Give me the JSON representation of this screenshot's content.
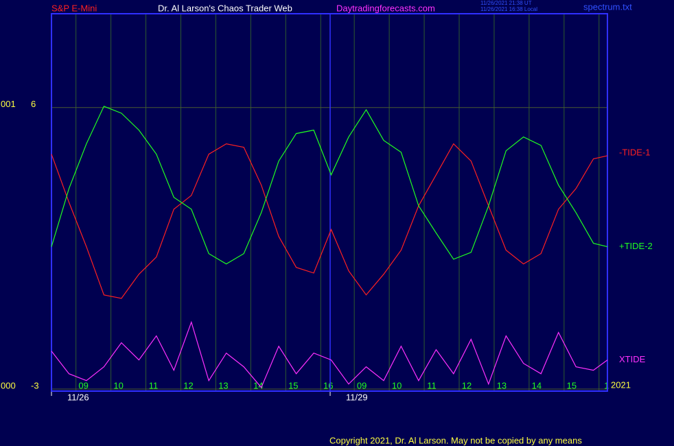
{
  "chart_data": {
    "type": "line",
    "header": {
      "instrument": "S&P E-Mini",
      "title": "Dr. Al Larson's Chaos Trader Web",
      "site": "Daytradingforecasts.com",
      "time_ut": "11/26/2021 21:38 UT",
      "time_local": "11/26/2021 16:38 Local",
      "file": "spectrum.txt"
    },
    "footer": "Copyright 2021, Dr. Al Larson. May not be copied by any means",
    "year_label": "2021",
    "x": [
      0,
      0.5,
      1,
      1.5,
      2,
      2.5,
      3,
      3.5,
      4,
      4.5,
      5,
      5.5,
      6,
      6.5,
      7,
      7.5,
      8,
      8.5,
      9,
      9.5,
      10,
      10.5,
      11,
      11.5,
      12,
      12.5,
      13,
      13.5,
      14,
      14.5,
      15,
      15.5,
      15.9
    ],
    "xlim": [
      0,
      15.9
    ],
    "xticks": [
      {
        "value": 0.7,
        "label": "09"
      },
      {
        "value": 1.7,
        "label": "10"
      },
      {
        "value": 2.7,
        "label": "11"
      },
      {
        "value": 3.7,
        "label": "12"
      },
      {
        "value": 4.7,
        "label": "13"
      },
      {
        "value": 5.7,
        "label": "14"
      },
      {
        "value": 6.7,
        "label": "15"
      },
      {
        "value": 7.7,
        "label": "16"
      },
      {
        "value": 8.66,
        "label": "09"
      },
      {
        "value": 9.66,
        "label": "10"
      },
      {
        "value": 10.66,
        "label": "11"
      },
      {
        "value": 11.66,
        "label": "12"
      },
      {
        "value": 12.66,
        "label": "13"
      },
      {
        "value": 13.66,
        "label": "14"
      },
      {
        "value": 14.66,
        "label": "15"
      },
      {
        "value": 15.66,
        "label": "1"
      }
    ],
    "date_ticks": [
      {
        "value": 0,
        "label": "11/26"
      },
      {
        "value": 7.97,
        "label": "11/29"
      }
    ],
    "ylim": [
      -3,
      9
    ],
    "yticks": [
      -3,
      6
    ],
    "ytick_codes": [
      "000",
      "001"
    ],
    "grid": true,
    "series": [
      {
        "name": "-TIDE-1",
        "color": "#ff2020",
        "values": [
          4.51,
          2.97,
          1.55,
          0.01,
          -0.1,
          0.67,
          1.22,
          2.75,
          3.19,
          4.51,
          4.84,
          4.73,
          3.52,
          1.88,
          0.89,
          0.71,
          2.1,
          0.78,
          0.01,
          0.67,
          1.44,
          2.86,
          3.85,
          4.84,
          4.29,
          2.86,
          1.44,
          1.0,
          1.33,
          2.75,
          3.41,
          4.36,
          4.46
        ]
      },
      {
        "name": "+TIDE-2",
        "color": "#20ff20",
        "values": [
          1.55,
          3.41,
          4.84,
          6.04,
          5.82,
          5.28,
          4.51,
          3.13,
          2.75,
          1.33,
          1.0,
          1.33,
          2.64,
          4.29,
          5.17,
          5.28,
          3.85,
          5.06,
          5.93,
          4.95,
          4.57,
          2.86,
          1.99,
          1.15,
          1.37,
          2.86,
          4.62,
          5.06,
          4.79,
          3.52,
          2.64,
          1.66,
          1.55
        ]
      },
      {
        "name": "XTIDE",
        "color": "#ff30ff",
        "values": [
          -1.79,
          -2.51,
          -2.73,
          -2.29,
          -1.52,
          -2.07,
          -1.3,
          -2.4,
          -0.86,
          -2.73,
          -1.85,
          -2.29,
          -2.95,
          -1.63,
          -2.51,
          -1.85,
          -2.07,
          -2.84,
          -2.29,
          -2.73,
          -1.63,
          -2.73,
          -1.74,
          -2.51,
          -1.41,
          -2.84,
          -1.3,
          -2.18,
          -2.51,
          -1.19,
          -2.29,
          -2.4,
          -2.07
        ]
      }
    ]
  }
}
